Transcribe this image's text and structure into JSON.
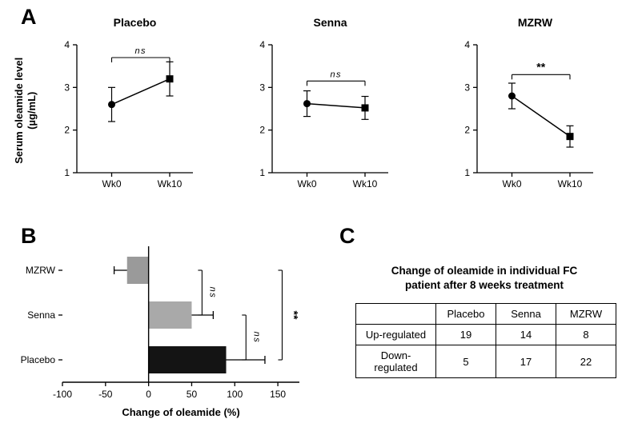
{
  "figure": {
    "panel_a_label": "A",
    "panel_b_label": "B",
    "panel_c_label": "C"
  },
  "panel_a": {
    "ylabel_line1": "Serum oleamide level",
    "ylabel_line2": "(µg/mL)"
  },
  "chart_data": [
    {
      "type": "line",
      "title": "Placebo",
      "ylabel": "Serum oleamide level (µg/mL)",
      "categories": [
        "Wk0",
        "Wk10"
      ],
      "values": [
        2.6,
        3.2
      ],
      "errors": [
        0.4,
        0.4
      ],
      "markers": [
        "circle",
        "square"
      ],
      "ylim": [
        1,
        4
      ],
      "yticks": [
        1,
        2,
        3,
        4
      ],
      "significance": "ns",
      "sig_y": 3.7
    },
    {
      "type": "line",
      "title": "Senna",
      "ylabel": "Serum oleamide level (µg/mL)",
      "categories": [
        "Wk0",
        "Wk10"
      ],
      "values": [
        2.62,
        2.52
      ],
      "errors": [
        0.3,
        0.27
      ],
      "markers": [
        "circle",
        "square"
      ],
      "ylim": [
        1,
        4
      ],
      "yticks": [
        1,
        2,
        3,
        4
      ],
      "significance": "ns",
      "sig_y": 3.15
    },
    {
      "type": "line",
      "title": "MZRW",
      "ylabel": "Serum oleamide level (µg/mL)",
      "categories": [
        "Wk0",
        "Wk10"
      ],
      "values": [
        2.8,
        1.85
      ],
      "errors": [
        0.3,
        0.25
      ],
      "markers": [
        "circle",
        "square"
      ],
      "ylim": [
        1,
        4
      ],
      "yticks": [
        1,
        2,
        3,
        4
      ],
      "significance": "**",
      "sig_y": 3.3
    },
    {
      "type": "bar",
      "orientation": "horizontal",
      "xlabel": "Change of oleamide (%)",
      "categories": [
        "MZRW",
        "Senna",
        "Placebo"
      ],
      "values": [
        -25,
        50,
        90
      ],
      "errors": [
        15,
        25,
        45
      ],
      "bar_colors": [
        "#9a9a9a",
        "#a9a9a9",
        "#141414"
      ],
      "xticks": [
        -100,
        -50,
        0,
        50,
        100,
        150
      ],
      "xlim": [
        -100,
        175
      ],
      "significance": [
        {
          "from": 0,
          "to": 1,
          "label": "ns",
          "x": 62
        },
        {
          "from": 1,
          "to": 2,
          "label": "ns",
          "x": 113
        },
        {
          "from": 0,
          "to": 2,
          "label": "**",
          "x": 155
        }
      ]
    },
    {
      "type": "table",
      "title_line1": "Change of oleamide in individual FC",
      "title_line2": "patient after 8 weeks treatment",
      "columns": [
        "",
        "Placebo",
        "Senna",
        "MZRW"
      ],
      "rows": [
        {
          "label": "Up-regulated",
          "values": [
            19,
            14,
            8
          ]
        },
        {
          "label": "Down-regulated",
          "values": [
            5,
            17,
            22
          ]
        }
      ]
    }
  ]
}
